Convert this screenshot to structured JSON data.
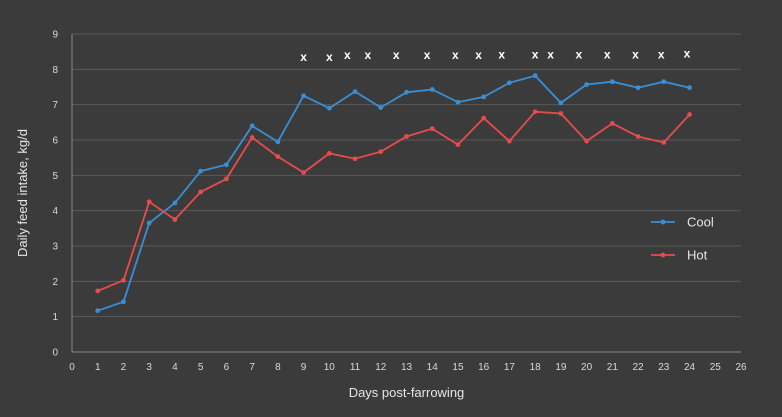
{
  "chart_data": {
    "type": "line",
    "title": "",
    "xlabel": "Days post-farrowing",
    "ylabel": "Daily feed intake, kg/d",
    "xlim": [
      0,
      26
    ],
    "ylim": [
      0,
      9
    ],
    "x_ticks": [
      0,
      1,
      2,
      3,
      4,
      5,
      6,
      7,
      8,
      9,
      10,
      11,
      12,
      13,
      14,
      15,
      16,
      17,
      18,
      19,
      20,
      21,
      22,
      23,
      24,
      25,
      26
    ],
    "y_ticks": [
      0,
      1,
      2,
      3,
      4,
      5,
      6,
      7,
      8,
      9
    ],
    "grid": "horizontal",
    "legend_position": "right",
    "series": [
      {
        "name": "Cool",
        "color": "#3a8fd4",
        "x": [
          1,
          2,
          3,
          4,
          5,
          6,
          7,
          8,
          9,
          10,
          11,
          12,
          13,
          14,
          15,
          16,
          17,
          18,
          19,
          20,
          21,
          22,
          23,
          24
        ],
        "values": [
          1.17,
          1.42,
          3.65,
          4.22,
          5.12,
          5.3,
          6.4,
          5.95,
          7.25,
          6.9,
          7.37,
          6.92,
          7.35,
          7.43,
          7.07,
          7.22,
          7.62,
          7.82,
          7.05,
          7.57,
          7.65,
          7.48,
          7.65,
          7.48
        ]
      },
      {
        "name": "Hot",
        "color": "#e64c4c",
        "x": [
          1,
          2,
          3,
          4,
          5,
          6,
          7,
          8,
          9,
          10,
          11,
          12,
          13,
          14,
          15,
          16,
          17,
          18,
          19,
          20,
          21,
          22,
          23,
          24
        ],
        "values": [
          1.73,
          2.03,
          4.25,
          3.75,
          4.53,
          4.9,
          6.07,
          5.53,
          5.08,
          5.62,
          5.47,
          5.67,
          6.1,
          6.32,
          5.87,
          6.62,
          5.97,
          6.8,
          6.75,
          5.97,
          6.47,
          6.1,
          5.93,
          6.72
        ]
      }
    ],
    "annotations": {
      "label": "x",
      "points": [
        {
          "x": 9,
          "y": 8.35
        },
        {
          "x": 10,
          "y": 8.35
        },
        {
          "x": 10.7,
          "y": 8.4
        },
        {
          "x": 11.5,
          "y": 8.4
        },
        {
          "x": 12.6,
          "y": 8.4
        },
        {
          "x": 13.8,
          "y": 8.4
        },
        {
          "x": 14.9,
          "y": 8.4
        },
        {
          "x": 15.8,
          "y": 8.4
        },
        {
          "x": 16.7,
          "y": 8.42
        },
        {
          "x": 18,
          "y": 8.42
        },
        {
          "x": 18.6,
          "y": 8.42
        },
        {
          "x": 19.7,
          "y": 8.42
        },
        {
          "x": 20.8,
          "y": 8.42
        },
        {
          "x": 21.9,
          "y": 8.42
        },
        {
          "x": 22.9,
          "y": 8.42
        },
        {
          "x": 23.9,
          "y": 8.45
        }
      ]
    }
  }
}
